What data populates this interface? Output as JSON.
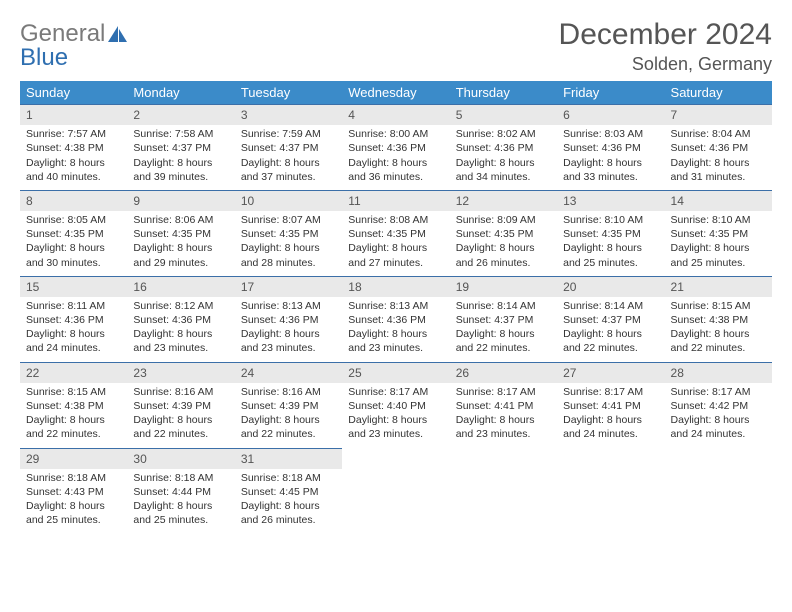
{
  "logo": {
    "grey": "General",
    "blue": "Blue"
  },
  "title": "December 2024",
  "location": "Solden, Germany",
  "colors": {
    "header_bg": "#3b8bc9",
    "header_text": "#ffffff",
    "row_border": "#3b6fa8",
    "daynum_bg": "#e9e9e9",
    "text": "#333333"
  },
  "days_of_week": [
    "Sunday",
    "Monday",
    "Tuesday",
    "Wednesday",
    "Thursday",
    "Friday",
    "Saturday"
  ],
  "weeks": [
    [
      {
        "n": "1",
        "sr": "7:57 AM",
        "ss": "4:38 PM",
        "dl": "8 hours and 40 minutes."
      },
      {
        "n": "2",
        "sr": "7:58 AM",
        "ss": "4:37 PM",
        "dl": "8 hours and 39 minutes."
      },
      {
        "n": "3",
        "sr": "7:59 AM",
        "ss": "4:37 PM",
        "dl": "8 hours and 37 minutes."
      },
      {
        "n": "4",
        "sr": "8:00 AM",
        "ss": "4:36 PM",
        "dl": "8 hours and 36 minutes."
      },
      {
        "n": "5",
        "sr": "8:02 AM",
        "ss": "4:36 PM",
        "dl": "8 hours and 34 minutes."
      },
      {
        "n": "6",
        "sr": "8:03 AM",
        "ss": "4:36 PM",
        "dl": "8 hours and 33 minutes."
      },
      {
        "n": "7",
        "sr": "8:04 AM",
        "ss": "4:36 PM",
        "dl": "8 hours and 31 minutes."
      }
    ],
    [
      {
        "n": "8",
        "sr": "8:05 AM",
        "ss": "4:35 PM",
        "dl": "8 hours and 30 minutes."
      },
      {
        "n": "9",
        "sr": "8:06 AM",
        "ss": "4:35 PM",
        "dl": "8 hours and 29 minutes."
      },
      {
        "n": "10",
        "sr": "8:07 AM",
        "ss": "4:35 PM",
        "dl": "8 hours and 28 minutes."
      },
      {
        "n": "11",
        "sr": "8:08 AM",
        "ss": "4:35 PM",
        "dl": "8 hours and 27 minutes."
      },
      {
        "n": "12",
        "sr": "8:09 AM",
        "ss": "4:35 PM",
        "dl": "8 hours and 26 minutes."
      },
      {
        "n": "13",
        "sr": "8:10 AM",
        "ss": "4:35 PM",
        "dl": "8 hours and 25 minutes."
      },
      {
        "n": "14",
        "sr": "8:10 AM",
        "ss": "4:35 PM",
        "dl": "8 hours and 25 minutes."
      }
    ],
    [
      {
        "n": "15",
        "sr": "8:11 AM",
        "ss": "4:36 PM",
        "dl": "8 hours and 24 minutes."
      },
      {
        "n": "16",
        "sr": "8:12 AM",
        "ss": "4:36 PM",
        "dl": "8 hours and 23 minutes."
      },
      {
        "n": "17",
        "sr": "8:13 AM",
        "ss": "4:36 PM",
        "dl": "8 hours and 23 minutes."
      },
      {
        "n": "18",
        "sr": "8:13 AM",
        "ss": "4:36 PM",
        "dl": "8 hours and 23 minutes."
      },
      {
        "n": "19",
        "sr": "8:14 AM",
        "ss": "4:37 PM",
        "dl": "8 hours and 22 minutes."
      },
      {
        "n": "20",
        "sr": "8:14 AM",
        "ss": "4:37 PM",
        "dl": "8 hours and 22 minutes."
      },
      {
        "n": "21",
        "sr": "8:15 AM",
        "ss": "4:38 PM",
        "dl": "8 hours and 22 minutes."
      }
    ],
    [
      {
        "n": "22",
        "sr": "8:15 AM",
        "ss": "4:38 PM",
        "dl": "8 hours and 22 minutes."
      },
      {
        "n": "23",
        "sr": "8:16 AM",
        "ss": "4:39 PM",
        "dl": "8 hours and 22 minutes."
      },
      {
        "n": "24",
        "sr": "8:16 AM",
        "ss": "4:39 PM",
        "dl": "8 hours and 22 minutes."
      },
      {
        "n": "25",
        "sr": "8:17 AM",
        "ss": "4:40 PM",
        "dl": "8 hours and 23 minutes."
      },
      {
        "n": "26",
        "sr": "8:17 AM",
        "ss": "4:41 PM",
        "dl": "8 hours and 23 minutes."
      },
      {
        "n": "27",
        "sr": "8:17 AM",
        "ss": "4:41 PM",
        "dl": "8 hours and 24 minutes."
      },
      {
        "n": "28",
        "sr": "8:17 AM",
        "ss": "4:42 PM",
        "dl": "8 hours and 24 minutes."
      }
    ],
    [
      {
        "n": "29",
        "sr": "8:18 AM",
        "ss": "4:43 PM",
        "dl": "8 hours and 25 minutes."
      },
      {
        "n": "30",
        "sr": "8:18 AM",
        "ss": "4:44 PM",
        "dl": "8 hours and 25 minutes."
      },
      {
        "n": "31",
        "sr": "8:18 AM",
        "ss": "4:45 PM",
        "dl": "8 hours and 26 minutes."
      },
      null,
      null,
      null,
      null
    ]
  ],
  "labels": {
    "sunrise": "Sunrise: ",
    "sunset": "Sunset: ",
    "daylight": "Daylight: "
  }
}
